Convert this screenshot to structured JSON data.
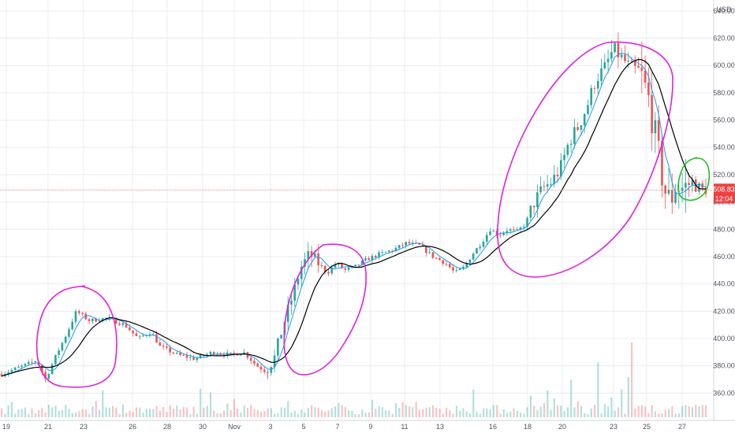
{
  "chart_data": {
    "type": "candlestick",
    "currency": "USD",
    "ylim": [
      340,
      648
    ],
    "y_ticks": [
      360,
      380,
      400,
      420,
      440,
      460,
      480,
      500,
      520,
      540,
      560,
      580,
      600,
      620,
      640
    ],
    "y_tick_labels": [
      "360.00",
      "380.00",
      "400.00",
      "420.00",
      "440.00",
      "460.00",
      "480.00",
      "500.00",
      "520.00",
      "540.00",
      "560.00",
      "580.00",
      "600.00",
      "620.00",
      "640.00"
    ],
    "x_tick_labels": [
      "19",
      "21",
      "23",
      "26",
      "28",
      "30",
      "Nov",
      "3",
      "5",
      "7",
      "9",
      "11",
      "13",
      "16",
      "18",
      "20",
      "23",
      "25",
      "27"
    ],
    "price_guide": [
      {
        "t": 0,
        "v": 374
      },
      {
        "t": 5,
        "v": 380
      },
      {
        "t": 8,
        "v": 384
      },
      {
        "t": 10,
        "v": 370
      },
      {
        "t": 12,
        "v": 385
      },
      {
        "t": 15,
        "v": 405
      },
      {
        "t": 17,
        "v": 420
      },
      {
        "t": 20,
        "v": 413
      },
      {
        "t": 24,
        "v": 415
      },
      {
        "t": 28,
        "v": 410
      },
      {
        "t": 31,
        "v": 400
      },
      {
        "t": 34,
        "v": 405
      },
      {
        "t": 36,
        "v": 394
      },
      {
        "t": 40,
        "v": 388
      },
      {
        "t": 44,
        "v": 385
      },
      {
        "t": 48,
        "v": 390
      },
      {
        "t": 52,
        "v": 388
      },
      {
        "t": 55,
        "v": 390
      },
      {
        "t": 58,
        "v": 380
      },
      {
        "t": 60,
        "v": 376
      },
      {
        "t": 62,
        "v": 386
      },
      {
        "t": 64,
        "v": 410
      },
      {
        "t": 66,
        "v": 430
      },
      {
        "t": 68,
        "v": 452
      },
      {
        "t": 70,
        "v": 462
      },
      {
        "t": 72,
        "v": 455
      },
      {
        "t": 74,
        "v": 448
      },
      {
        "t": 76,
        "v": 455
      },
      {
        "t": 78,
        "v": 450
      },
      {
        "t": 80,
        "v": 452
      },
      {
        "t": 83,
        "v": 458
      },
      {
        "t": 86,
        "v": 462
      },
      {
        "t": 89,
        "v": 465
      },
      {
        "t": 92,
        "v": 470
      },
      {
        "t": 95,
        "v": 468
      },
      {
        "t": 98,
        "v": 460
      },
      {
        "t": 101,
        "v": 455
      },
      {
        "t": 103,
        "v": 448
      },
      {
        "t": 105,
        "v": 452
      },
      {
        "t": 107,
        "v": 462
      },
      {
        "t": 109,
        "v": 470
      },
      {
        "t": 111,
        "v": 480
      },
      {
        "t": 113,
        "v": 476
      },
      {
        "t": 115,
        "v": 480
      },
      {
        "t": 117,
        "v": 478
      },
      {
        "t": 119,
        "v": 484
      },
      {
        "t": 121,
        "v": 500
      },
      {
        "t": 123,
        "v": 510
      },
      {
        "t": 125,
        "v": 515
      },
      {
        "t": 127,
        "v": 525
      },
      {
        "t": 129,
        "v": 545
      },
      {
        "t": 131,
        "v": 555
      },
      {
        "t": 133,
        "v": 570
      },
      {
        "t": 135,
        "v": 590
      },
      {
        "t": 137,
        "v": 598
      },
      {
        "t": 139,
        "v": 612
      },
      {
        "t": 141,
        "v": 605
      },
      {
        "t": 143,
        "v": 598
      },
      {
        "t": 145,
        "v": 596
      },
      {
        "t": 147,
        "v": 575
      },
      {
        "t": 149,
        "v": 540
      },
      {
        "t": 150,
        "v": 520
      },
      {
        "t": 151,
        "v": 505
      },
      {
        "t": 152,
        "v": 500
      },
      {
        "t": 153,
        "v": 512
      },
      {
        "t": 155,
        "v": 510
      },
      {
        "t": 157,
        "v": 515
      },
      {
        "t": 159,
        "v": 508
      },
      {
        "t": 160,
        "v": 510
      }
    ],
    "current_price_label": "508.83",
    "countdown_label": "12:04",
    "current_price": 508.83,
    "colors": {
      "up": "#26a69a",
      "down": "#ef5350",
      "fast_ma": "#2196f3",
      "slow_ma": "#000000",
      "circle_main": "#e020e0",
      "circle_latest": "#22c022",
      "badge": "#f04040",
      "grid": "#e9ecf2",
      "axis_text": "#50535e",
      "price_line": "#f27777"
    }
  }
}
